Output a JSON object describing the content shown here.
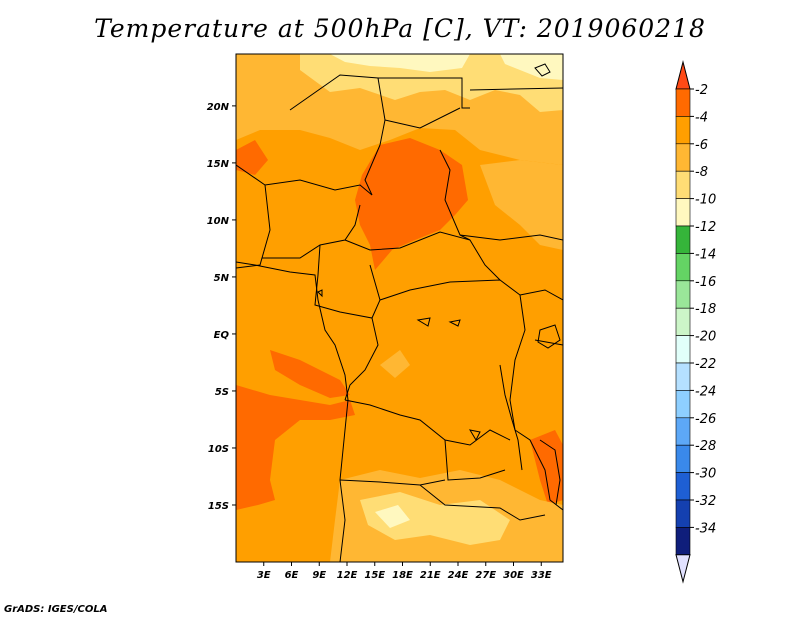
{
  "title": "Temperature at 500hPa [C], VT: 2019060218",
  "credit": "GrADS: IGES/COLA",
  "latitudes": [
    {
      "label": "20N",
      "value": 20
    },
    {
      "label": "15N",
      "value": 15
    },
    {
      "label": "10N",
      "value": 10
    },
    {
      "label": "5N",
      "value": 5
    },
    {
      "label": "EQ",
      "value": 0
    },
    {
      "label": "5S",
      "value": -5
    },
    {
      "label": "10S",
      "value": -10
    },
    {
      "label": "15S",
      "value": -15
    }
  ],
  "longitudes": [
    {
      "label": "3E",
      "value": 3
    },
    {
      "label": "6E",
      "value": 6
    },
    {
      "label": "9E",
      "value": 9
    },
    {
      "label": "12E",
      "value": 12
    },
    {
      "label": "15E",
      "value": 15
    },
    {
      "label": "18E",
      "value": 18
    },
    {
      "label": "21E",
      "value": 21
    },
    {
      "label": "24E",
      "value": 24
    },
    {
      "label": "27E",
      "value": 27
    },
    {
      "label": "30E",
      "value": 30
    },
    {
      "label": "33E",
      "value": 33
    }
  ],
  "colorbar": {
    "labels": [
      "-2",
      "-4",
      "-6",
      "-8",
      "-10",
      "-12",
      "-14",
      "-16",
      "-18",
      "-20",
      "-22",
      "-24",
      "-26",
      "-28",
      "-30",
      "-32",
      "-34"
    ],
    "colors": [
      "#ff4a16",
      "#ff6a00",
      "#ff9f00",
      "#ffb733",
      "#ffdd75",
      "#fff8bf",
      "#35b53a",
      "#64d464",
      "#9ae699",
      "#ccf5c8",
      "#e1fffa",
      "#b5e0ff",
      "#8ecfff",
      "#5da8f7",
      "#3a89ea",
      "#1e5fd4",
      "#1440b0",
      "#0f1e7b",
      "#e1e1ff"
    ]
  },
  "colors": {
    "background_field": "#ff9f00",
    "warm": "#ff6a00",
    "warmest": "#ff4a16",
    "cool": "#ffb733",
    "cooler": "#ffdd75"
  }
}
